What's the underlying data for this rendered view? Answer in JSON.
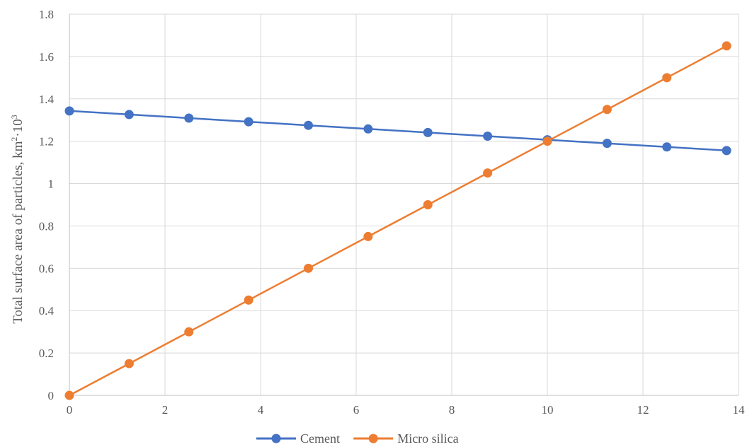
{
  "chart_data": {
    "type": "line",
    "title": "",
    "xlabel": "",
    "ylabel": "Total surface area of particles, km",
    "ylabel_sup1": "2",
    "ylabel_mid": "·10",
    "ylabel_sup2": "3",
    "xlim": [
      0,
      14
    ],
    "ylim": [
      0,
      1.8
    ],
    "x_ticks": [
      "0",
      "2",
      "4",
      "6",
      "8",
      "10",
      "12",
      "14"
    ],
    "y_ticks": [
      "0",
      "0.2",
      "0.4",
      "0.6",
      "0.8",
      "1",
      "1.2",
      "1.4",
      "1.6",
      "1.8"
    ],
    "x_tick_values": [
      0,
      2,
      4,
      6,
      8,
      10,
      12,
      14
    ],
    "y_tick_values": [
      0,
      0.2,
      0.4,
      0.6,
      0.8,
      1.0,
      1.2,
      1.4,
      1.6,
      1.8
    ],
    "grid": true,
    "legend_position": "bottom",
    "x": [
      0,
      1.25,
      2.5,
      3.75,
      5,
      6.25,
      7.5,
      8.75,
      10,
      11.25,
      12.5,
      13.75
    ],
    "series": [
      {
        "name": "Cement",
        "color": "#4472c4",
        "values": [
          1.343,
          1.326,
          1.309,
          1.292,
          1.275,
          1.258,
          1.241,
          1.224,
          1.207,
          1.19,
          1.173,
          1.156
        ]
      },
      {
        "name": "Micro silica",
        "color": "#ed7d31",
        "values": [
          0,
          0.15,
          0.3,
          0.45,
          0.6,
          0.75,
          0.9,
          1.05,
          1.2,
          1.35,
          1.5,
          1.65
        ]
      }
    ]
  }
}
